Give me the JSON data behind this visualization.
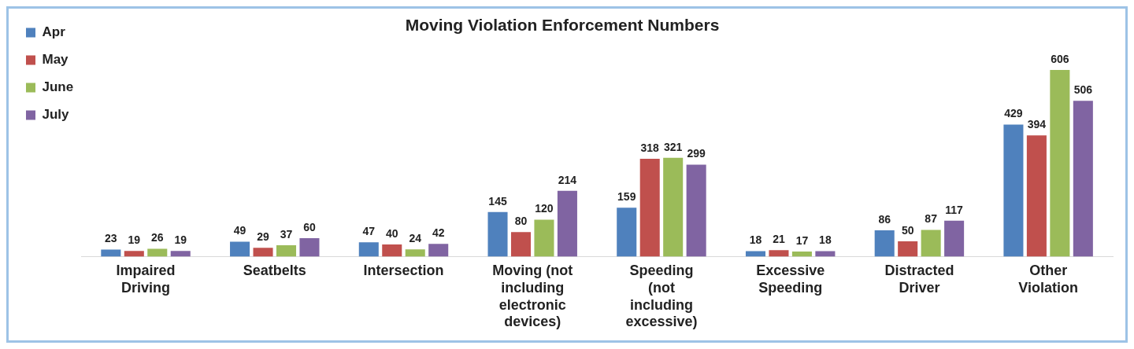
{
  "chart_data": {
    "type": "bar",
    "title": "Moving Violation Enforcement Numbers",
    "categories": [
      "Impaired Driving",
      "Seatbelts",
      "Intersection",
      "Moving (not including electronic devices)",
      "Speeding (not including excessive)",
      "Excessive Speeding",
      "Distracted Driver",
      "Other Violation"
    ],
    "series": [
      {
        "name": "Apr",
        "color": "#4f81bd",
        "values": [
          23,
          49,
          47,
          145,
          159,
          18,
          86,
          429
        ]
      },
      {
        "name": "May",
        "color": "#c0504d",
        "values": [
          19,
          29,
          40,
          80,
          318,
          21,
          50,
          394
        ]
      },
      {
        "name": "June",
        "color": "#9bbb59",
        "values": [
          26,
          37,
          24,
          120,
          321,
          17,
          87,
          606
        ]
      },
      {
        "name": "July",
        "color": "#8064a2",
        "values": [
          19,
          60,
          42,
          214,
          299,
          18,
          117,
          506
        ]
      }
    ],
    "data_labels": true,
    "legend": "top left",
    "grid": false
  }
}
